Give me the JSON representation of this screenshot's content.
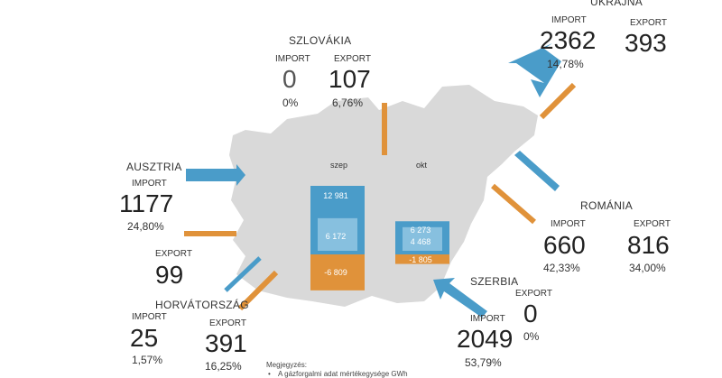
{
  "colors": {
    "import_arrow": "#4a9cc9",
    "export_arrow": "#e0923a",
    "map_fill": "#d9d9d9",
    "bar_import_dark": "#4a9cc9",
    "bar_import_light": "#87c0df",
    "bar_export": "#e0923a"
  },
  "countries": {
    "szlovakia": {
      "name": "SZLOVÁKIA",
      "import_label": "IMPORT",
      "export_label": "EXPORT",
      "import_value": "0",
      "import_pct": "0%",
      "export_value": "107",
      "export_pct": "6,76%"
    },
    "ukrajna": {
      "name": "UKRAJNA",
      "import_label": "IMPORT",
      "export_label": "EXPORT",
      "import_value": "2362",
      "import_pct": "14,78%",
      "export_value": "393"
    },
    "ausztria": {
      "name": "AUSZTRIA",
      "import_label": "IMPORT",
      "export_label": "EXPORT",
      "import_value": "1177",
      "import_pct": "24,80%",
      "export_value": "99"
    },
    "romania": {
      "name": "ROMÁNIA",
      "import_label": "IMPORT",
      "export_label": "EXPORT",
      "import_value": "660",
      "import_pct": "42,33%",
      "export_value": "816",
      "export_pct": "34,00%"
    },
    "szerbia": {
      "name": "SZERBIA",
      "import_label": "IMPORT",
      "export_label": "EXPORT",
      "import_value": "2049",
      "import_pct": "53,79%",
      "export_value": "0",
      "export_pct": "0%"
    },
    "horvatorszag": {
      "name": "HORVÁTORSZÁG",
      "import_label": "IMPORT",
      "export_label": "EXPORT",
      "import_value": "25",
      "import_pct": "1,57%",
      "export_value": "391",
      "export_pct": "16,25%"
    }
  },
  "months": {
    "sep": "szep",
    "oct": "okt"
  },
  "bars": {
    "sep": {
      "total_import": 12981,
      "domestic": 6172,
      "export": -6809,
      "total_import_label": "12 981",
      "domestic_label": "6 172",
      "export_label": "-6 809"
    },
    "oct": {
      "total_import": 6273,
      "domestic": 4468,
      "export": -1805,
      "total_import_label": "6 273",
      "domestic_label": "4 468",
      "export_label": "-1 805"
    }
  },
  "note": {
    "title": "Megjegyzés:",
    "item": "A gázforgalmi adat mértékegysége GWh"
  }
}
